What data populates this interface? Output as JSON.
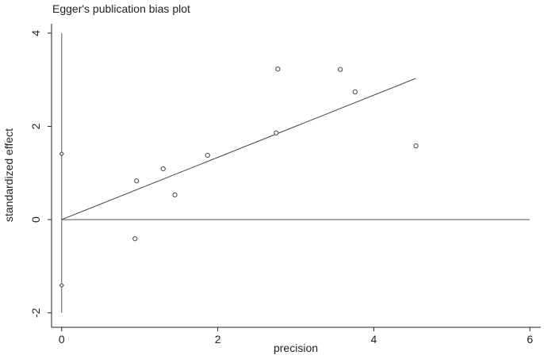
{
  "chart_data": {
    "type": "scatter",
    "title": "Egger's publication bias plot",
    "x_label": "precision",
    "y_label": "standardized effect",
    "x": [
      0.96,
      0.94,
      1.3,
      1.45,
      1.87,
      2.75,
      2.77,
      3.57,
      3.76,
      4.54
    ],
    "values": [
      0.83,
      -0.41,
      1.09,
      0.53,
      1.38,
      1.86,
      3.23,
      3.22,
      2.74,
      1.58
    ],
    "fit_line": {
      "x": [
        0,
        4.54
      ],
      "values": [
        0,
        3.03
      ]
    },
    "intercept_ci": [
      1.41,
      -1.41
    ],
    "xlim": [
      -0.13,
      6.14
    ],
    "ylim": [
      -2.31,
      4.2
    ],
    "xticks": [
      0,
      2,
      4,
      6
    ],
    "yticks": [
      -2,
      0,
      2,
      4
    ],
    "color": "#444444"
  }
}
